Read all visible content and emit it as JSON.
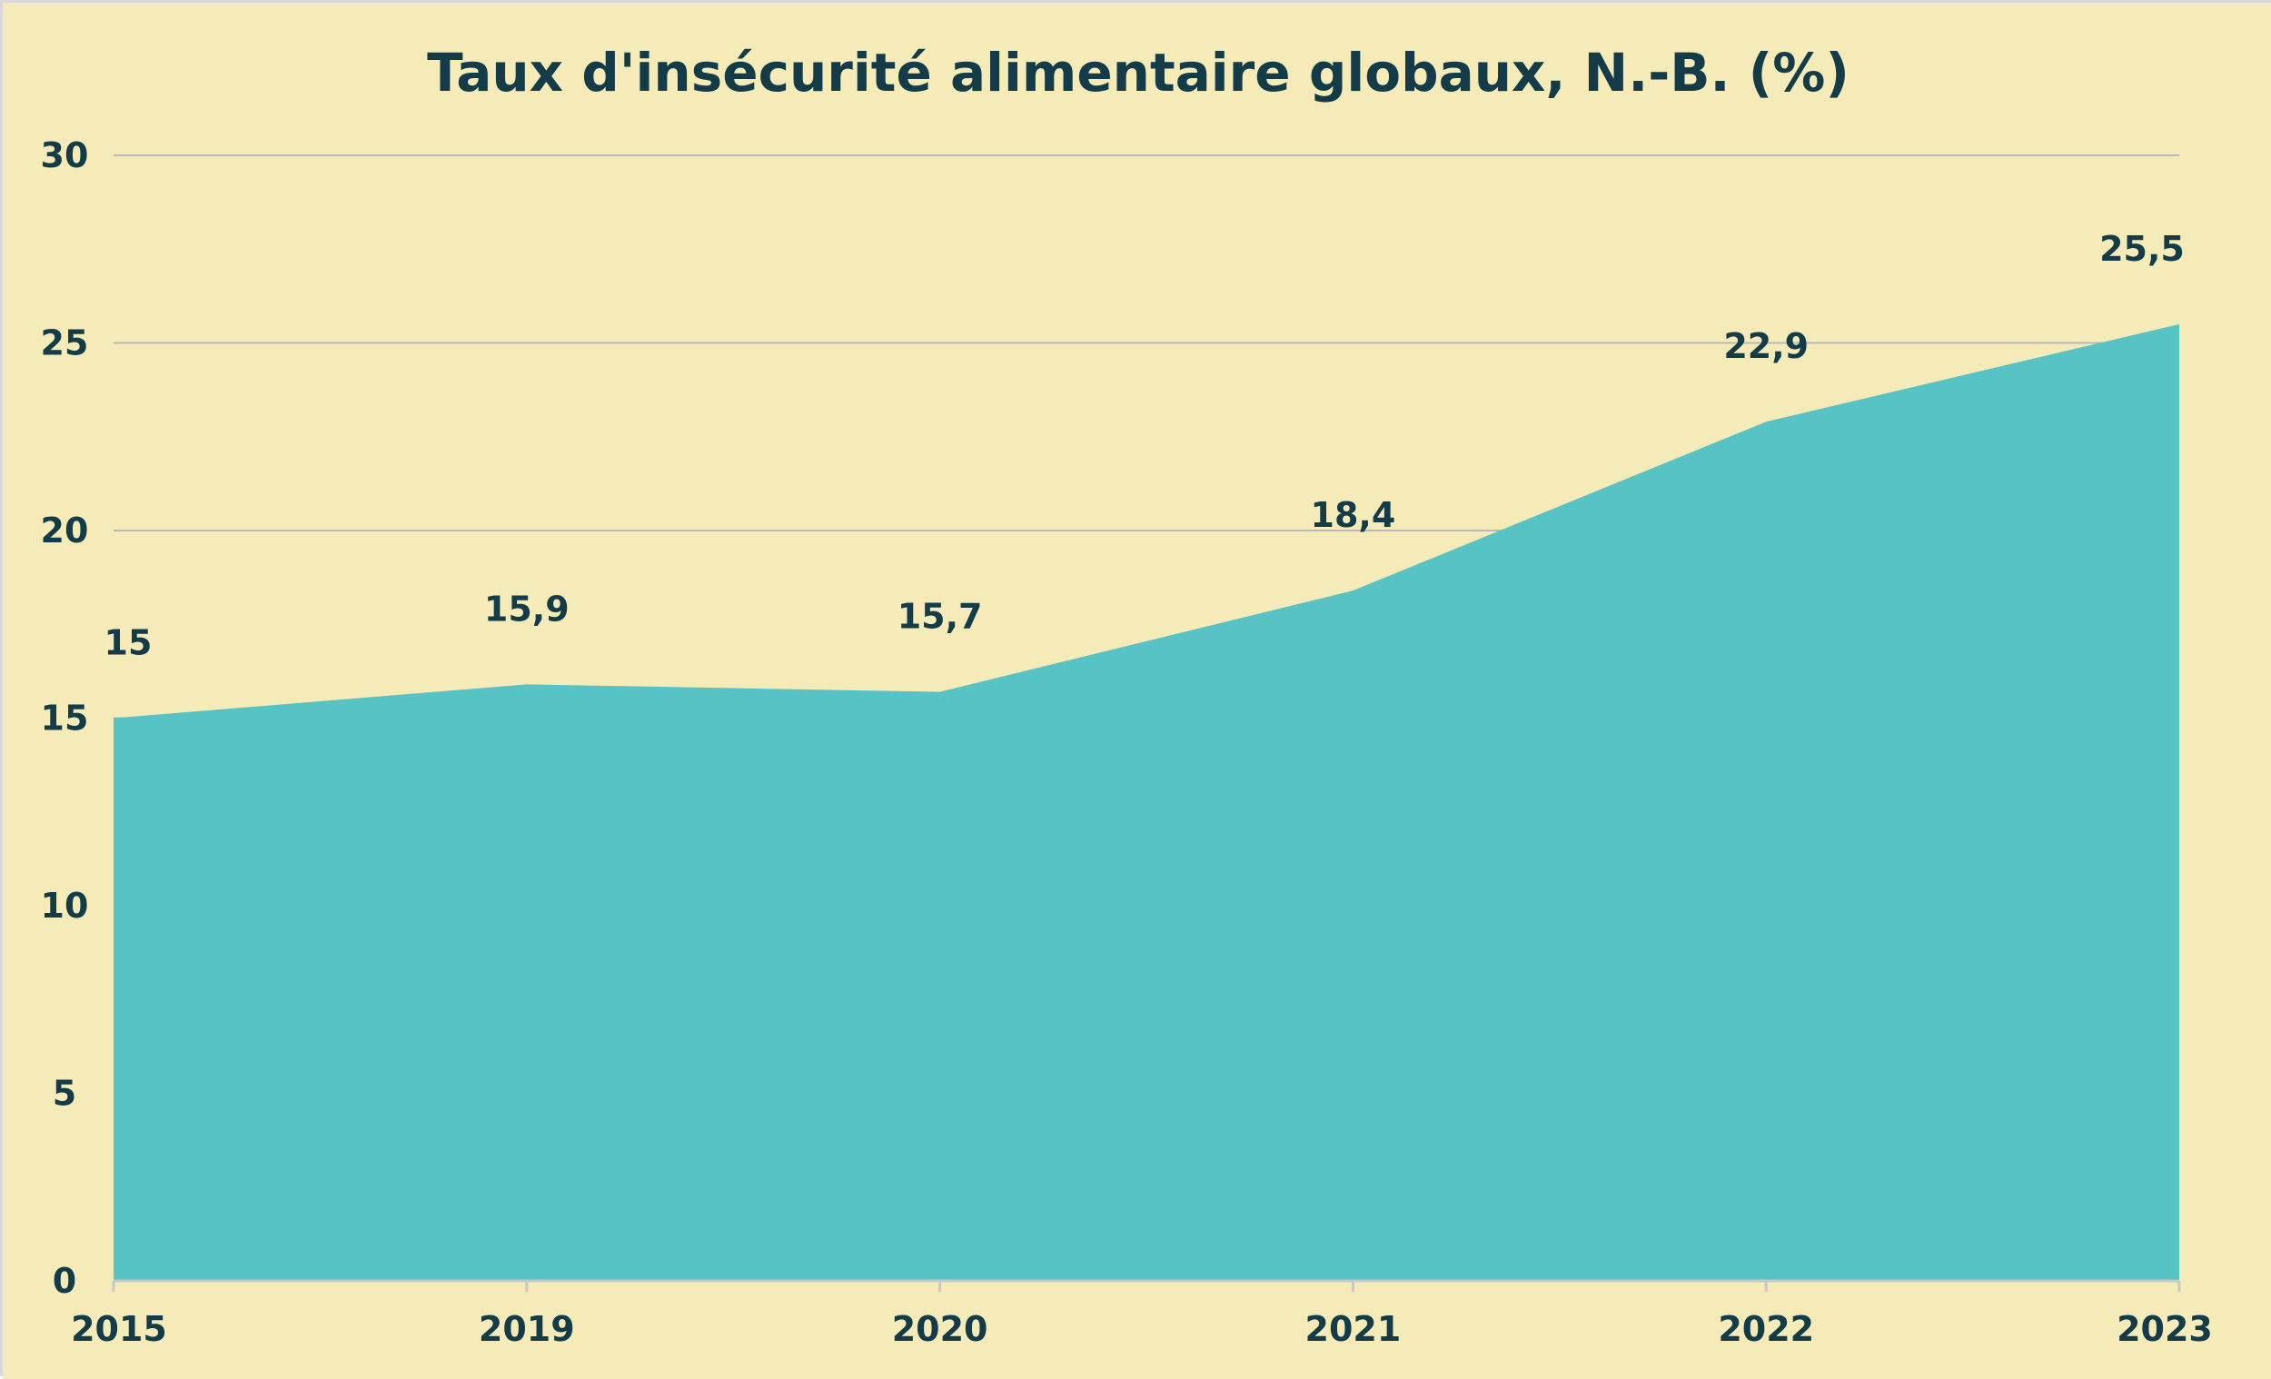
{
  "colors": {
    "background": "#f5ebb9",
    "area_fill": "#57c3c4",
    "text": "#133b48",
    "gridline": "#b9b9b9",
    "axis": "#c8c8c8",
    "border": "#d9d9d9"
  },
  "chart_data": {
    "type": "area",
    "title": "Taux d'insécurité alimentaire globaux, N.-B. (%)",
    "xlabel": "",
    "ylabel": "",
    "categories": [
      "2015",
      "2019",
      "2020",
      "2021",
      "2022",
      "2023"
    ],
    "values": [
      15,
      15.9,
      15.7,
      18.4,
      22.9,
      25.5
    ],
    "data_labels": [
      "15",
      "15,9",
      "15,7",
      "18,4",
      "22,9",
      "25,5"
    ],
    "ylim": [
      0,
      30
    ],
    "yticks": [
      0,
      5,
      10,
      15,
      20,
      25,
      30
    ],
    "ytick_labels": [
      "0",
      "5",
      "10",
      "15",
      "20",
      "25",
      "30"
    ],
    "grid": true,
    "legend": false
  }
}
